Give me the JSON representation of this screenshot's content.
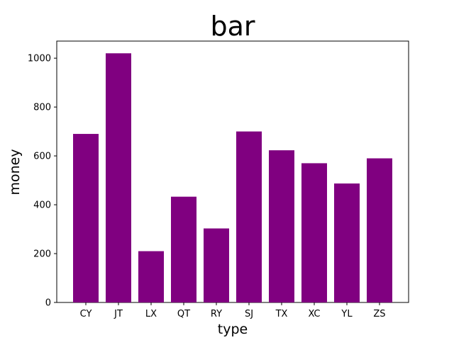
{
  "chart_data": {
    "type": "bar",
    "title": "bar",
    "xlabel": "type",
    "ylabel": "money",
    "categories": [
      "CY",
      "JT",
      "LX",
      "QT",
      "RY",
      "SJ",
      "TX",
      "XC",
      "YL",
      "ZS"
    ],
    "values": [
      690,
      1020,
      210,
      433,
      303,
      700,
      623,
      570,
      487,
      590
    ],
    "ylim": [
      0,
      1070
    ],
    "yticks": [
      0,
      200,
      400,
      600,
      800,
      1000
    ],
    "grid": false,
    "bar_color": "#800080"
  }
}
